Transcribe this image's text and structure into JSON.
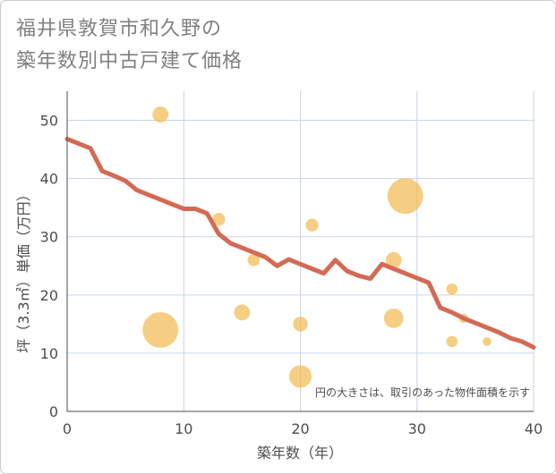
{
  "chart_data": {
    "type": "scatter",
    "title": [
      "福井県敦賀市和久野の",
      "築年数別中古戸建て価格"
    ],
    "xlabel": "築年数（年）",
    "ylabel": "坪（3.3㎡）単価（万円）",
    "xlim": [
      0,
      40
    ],
    "ylim": [
      0,
      55
    ],
    "xticks": [
      0,
      10,
      20,
      30,
      40
    ],
    "yticks": [
      0,
      10,
      20,
      30,
      40,
      50
    ],
    "grid": true,
    "note": "円の大きさは、取引のあった物件面積を示す",
    "colors": {
      "bubble": "#f2b94e",
      "line": "#d46a55",
      "grid": "#c8d6e6"
    },
    "bubbles": [
      {
        "x": 8,
        "y": 51,
        "size": 2
      },
      {
        "x": 8,
        "y": 14,
        "size": 10
      },
      {
        "x": 13,
        "y": 33,
        "size": 1.3
      },
      {
        "x": 15,
        "y": 17,
        "size": 2
      },
      {
        "x": 16,
        "y": 26,
        "size": 1.2
      },
      {
        "x": 20,
        "y": 15,
        "size": 1.7
      },
      {
        "x": 20,
        "y": 6,
        "size": 4
      },
      {
        "x": 21,
        "y": 32,
        "size": 1.3
      },
      {
        "x": 28,
        "y": 26,
        "size": 2
      },
      {
        "x": 28,
        "y": 16,
        "size": 3
      },
      {
        "x": 29,
        "y": 37,
        "size": 10
      },
      {
        "x": 33,
        "y": 21,
        "size": 1
      },
      {
        "x": 33,
        "y": 12,
        "size": 1
      },
      {
        "x": 34,
        "y": 16,
        "size": 0.7
      },
      {
        "x": 36,
        "y": 12,
        "size": 0.6
      }
    ],
    "trend": {
      "x": [
        0,
        1,
        2,
        3,
        4,
        5,
        6,
        7,
        8,
        9,
        10,
        11,
        12,
        13,
        14,
        15,
        16,
        17,
        18,
        19,
        20,
        21,
        22,
        23,
        24,
        25,
        26,
        27,
        28,
        29,
        30,
        31,
        32,
        33,
        34,
        35,
        36,
        37,
        38,
        39,
        40
      ],
      "y": [
        46.8,
        46,
        45.2,
        41.3,
        40.5,
        39.6,
        38,
        37.2,
        36.4,
        35.6,
        34.8,
        34.8,
        34,
        30.5,
        28.9,
        28.1,
        27.3,
        26.5,
        25,
        26.1,
        25.3,
        24.5,
        23.7,
        26,
        24.1,
        23.3,
        22.8,
        25.3,
        24.5,
        23.7,
        22.9,
        22.1,
        17.8,
        17,
        16,
        15.2,
        14.4,
        13.6,
        12.6,
        12,
        11
      ]
    }
  }
}
